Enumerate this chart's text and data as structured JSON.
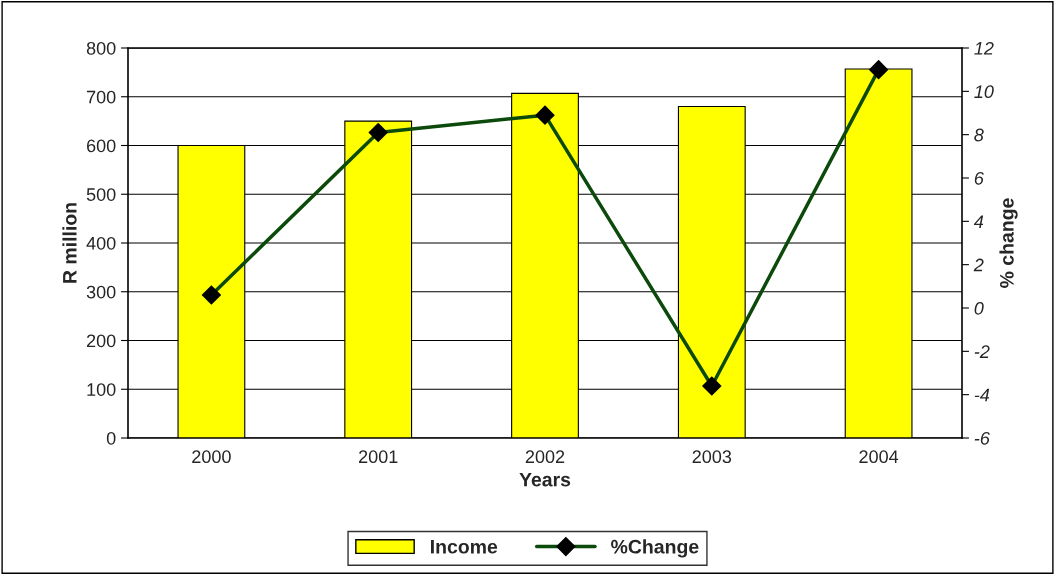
{
  "chart_data": {
    "type": "bar",
    "categories": [
      "2000",
      "2001",
      "2002",
      "2003",
      "2004"
    ],
    "series": [
      {
        "name": "Income",
        "color": "#ffff00",
        "values": [
          600,
          650,
          707,
          680,
          757
        ]
      },
      {
        "name": "%Change",
        "type": "line",
        "axis": "y2",
        "color": "#0b4a0b",
        "marker": "diamond",
        "values": [
          0.6,
          8.1,
          8.9,
          -3.6,
          11.0
        ]
      }
    ],
    "xlabel": "Years",
    "ylabel": "R million",
    "y2label": "% change",
    "ylim": [
      0,
      800
    ],
    "yticks": [
      0,
      100,
      200,
      300,
      400,
      500,
      600,
      700,
      800
    ],
    "y2lim": [
      -6,
      12
    ],
    "y2ticks": [
      -6,
      -4,
      -2,
      0,
      2,
      4,
      6,
      8,
      10,
      12
    ],
    "grid": "y",
    "legend": "bottom"
  }
}
